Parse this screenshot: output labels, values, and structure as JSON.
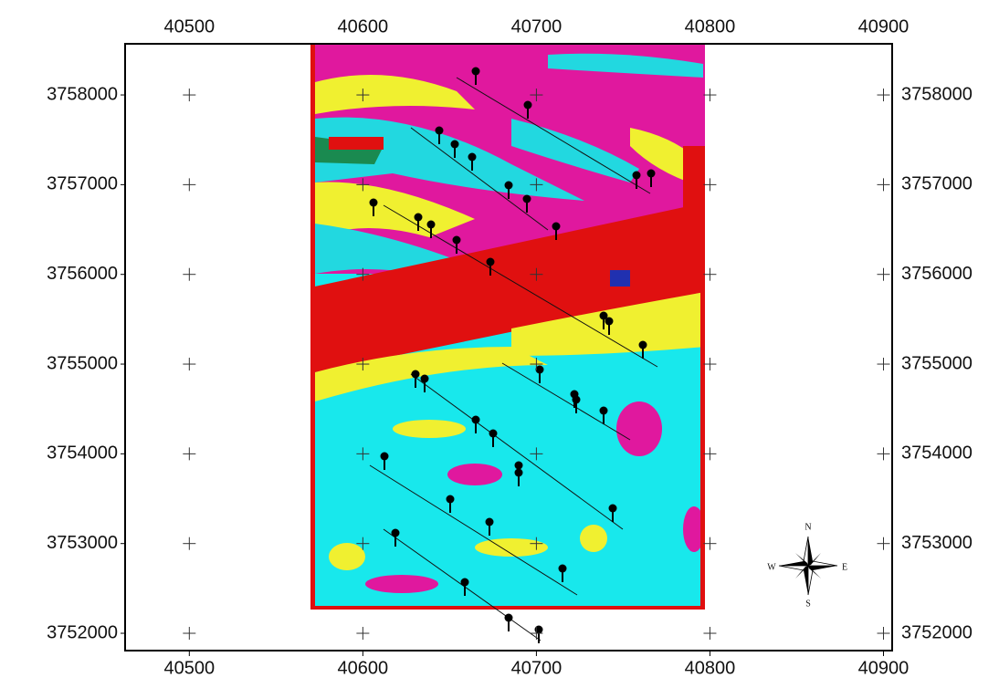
{
  "map": {
    "xlim": [
      40463,
      40905
    ],
    "ylim": [
      3751807,
      3758570
    ],
    "xticks": [
      40500,
      40600,
      40700,
      40800,
      40900
    ],
    "yticks": [
      3752000,
      3753000,
      3754000,
      3755000,
      3756000,
      3757000,
      3758000
    ],
    "compass": {
      "north": "N",
      "east": "E",
      "south": "S",
      "west": "W"
    }
  }
}
